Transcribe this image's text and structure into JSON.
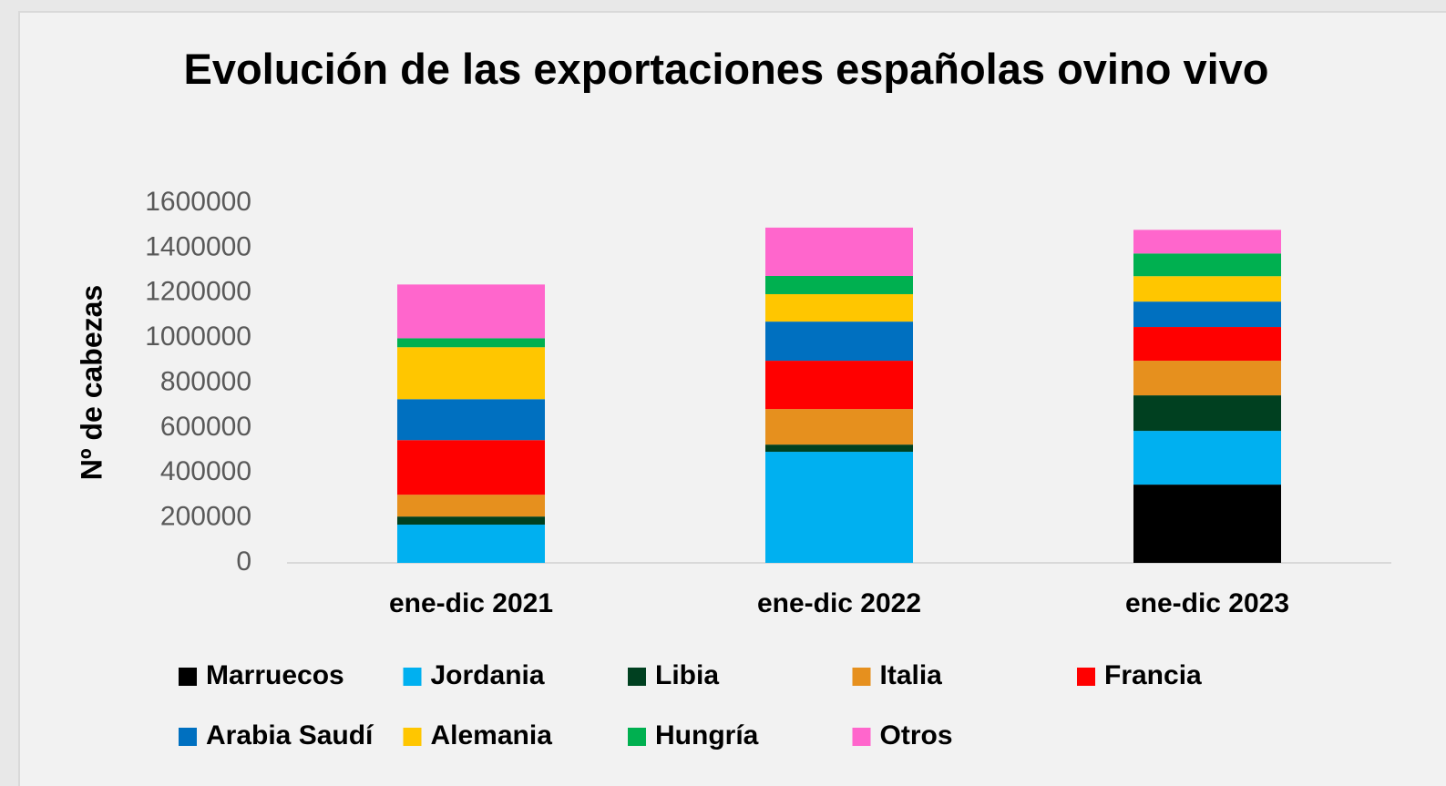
{
  "chart_data": {
    "type": "stacked_bar",
    "title": "Evolución de las exportaciones españolas ovino vivo",
    "y_label": "Nº de cabezas",
    "categories": [
      "ene-dic 2021",
      "ene-dic 2022",
      "ene-dic 2023"
    ],
    "series": [
      {
        "name": "Marruecos",
        "color": "#000000",
        "values": [
          0,
          0,
          348000
        ]
      },
      {
        "name": "Jordania",
        "color": "#00b0f0",
        "values": [
          170000,
          494000,
          239000
        ]
      },
      {
        "name": "Libia",
        "color": "#004020",
        "values": [
          36000,
          32000,
          158000
        ]
      },
      {
        "name": "Italia",
        "color": "#e6901e",
        "values": [
          97000,
          158000,
          154000
        ]
      },
      {
        "name": "Francia",
        "color": "#ff0000",
        "values": [
          243000,
          215000,
          150000
        ]
      },
      {
        "name": "Arabia Saudí",
        "color": "#0070c0",
        "values": [
          182000,
          174000,
          113000
        ]
      },
      {
        "name": "Alemania",
        "color": "#ffc600",
        "values": [
          231000,
          122000,
          113000
        ]
      },
      {
        "name": "Hungría",
        "color": "#00b050",
        "values": [
          40000,
          81000,
          101000
        ]
      },
      {
        "name": "Otros",
        "color": "#ff66cc",
        "values": [
          239000,
          215000,
          105000
        ]
      }
    ],
    "ylim": [
      0,
      1600000
    ],
    "yticks": [
      0,
      200000,
      400000,
      600000,
      800000,
      1000000,
      1200000,
      1400000,
      1600000
    ],
    "legend": "bottom"
  }
}
